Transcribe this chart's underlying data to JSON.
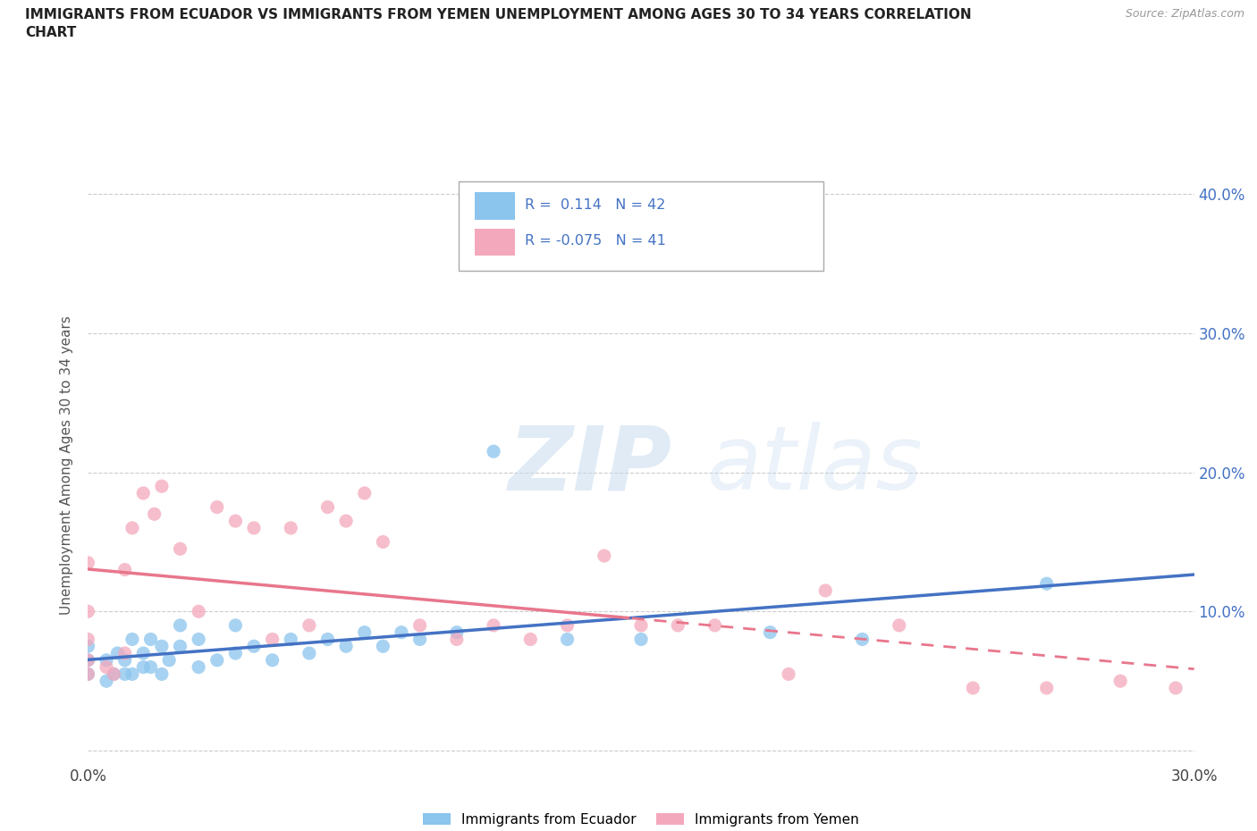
{
  "title": "IMMIGRANTS FROM ECUADOR VS IMMIGRANTS FROM YEMEN UNEMPLOYMENT AMONG AGES 30 TO 34 YEARS CORRELATION\nCHART",
  "source": "Source: ZipAtlas.com",
  "ylabel": "Unemployment Among Ages 30 to 34 years",
  "xlim": [
    0.0,
    0.3
  ],
  "ylim": [
    -0.01,
    0.42
  ],
  "xticks": [
    0.0,
    0.05,
    0.1,
    0.15,
    0.2,
    0.25,
    0.3
  ],
  "xtick_labels": [
    "0.0%",
    "",
    "",
    "",
    "",
    "",
    "30.0%"
  ],
  "yticks_right": [
    0.0,
    0.1,
    0.2,
    0.3,
    0.4
  ],
  "ytick_labels_right": [
    "",
    "10.0%",
    "20.0%",
    "30.0%",
    "40.0%"
  ],
  "R_ecuador": 0.114,
  "N_ecuador": 42,
  "R_yemen": -0.075,
  "N_yemen": 41,
  "color_ecuador": "#8BC4ED",
  "color_yemen": "#F4A8BC",
  "trendline_ecuador_color": "#4472C4",
  "trendline_yemen_color": "#E8768C",
  "ecuador_x": [
    0.0,
    0.0,
    0.0,
    0.005,
    0.005,
    0.007,
    0.008,
    0.01,
    0.01,
    0.012,
    0.012,
    0.015,
    0.015,
    0.017,
    0.017,
    0.02,
    0.02,
    0.022,
    0.025,
    0.025,
    0.03,
    0.03,
    0.035,
    0.04,
    0.04,
    0.045,
    0.05,
    0.055,
    0.06,
    0.065,
    0.07,
    0.075,
    0.08,
    0.085,
    0.09,
    0.1,
    0.11,
    0.13,
    0.15,
    0.185,
    0.21,
    0.26
  ],
  "ecuador_y": [
    0.055,
    0.065,
    0.075,
    0.05,
    0.065,
    0.055,
    0.07,
    0.055,
    0.065,
    0.055,
    0.08,
    0.06,
    0.07,
    0.06,
    0.08,
    0.055,
    0.075,
    0.065,
    0.075,
    0.09,
    0.06,
    0.08,
    0.065,
    0.07,
    0.09,
    0.075,
    0.065,
    0.08,
    0.07,
    0.08,
    0.075,
    0.085,
    0.075,
    0.085,
    0.08,
    0.085,
    0.215,
    0.08,
    0.08,
    0.085,
    0.08,
    0.12
  ],
  "yemen_x": [
    0.0,
    0.0,
    0.0,
    0.0,
    0.0,
    0.005,
    0.007,
    0.01,
    0.01,
    0.012,
    0.015,
    0.018,
    0.02,
    0.025,
    0.03,
    0.035,
    0.04,
    0.045,
    0.05,
    0.055,
    0.06,
    0.065,
    0.07,
    0.075,
    0.08,
    0.09,
    0.1,
    0.11,
    0.12,
    0.13,
    0.14,
    0.15,
    0.16,
    0.17,
    0.19,
    0.2,
    0.22,
    0.24,
    0.26,
    0.28,
    0.295
  ],
  "yemen_y": [
    0.055,
    0.065,
    0.08,
    0.1,
    0.135,
    0.06,
    0.055,
    0.07,
    0.13,
    0.16,
    0.185,
    0.17,
    0.19,
    0.145,
    0.1,
    0.175,
    0.165,
    0.16,
    0.08,
    0.16,
    0.09,
    0.175,
    0.165,
    0.185,
    0.15,
    0.09,
    0.08,
    0.09,
    0.08,
    0.09,
    0.14,
    0.09,
    0.09,
    0.09,
    0.055,
    0.115,
    0.09,
    0.045,
    0.045,
    0.05,
    0.045
  ],
  "legend_label_ecuador": "Immigrants from Ecuador",
  "legend_label_yemen": "Immigrants from Yemen"
}
